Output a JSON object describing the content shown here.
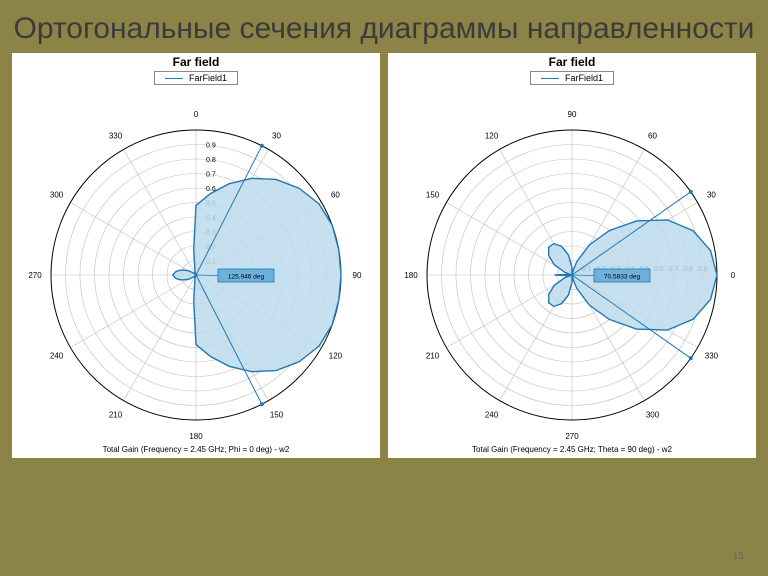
{
  "slide": {
    "background_color": "#8c8446",
    "title": "Ортогональные сечения диаграммы направленности",
    "title_color": "#3b3b3b",
    "title_fontsize": 30
  },
  "charts": [
    {
      "title": "Far field",
      "title_fontsize": 12,
      "legend_label": "FarField1",
      "legend_color": "#1f77b4",
      "caption": "Total Gain (Frequency = 2.45 GHz; Phi = 0 deg) - w2",
      "caption_fontsize": 8,
      "polar": {
        "type": "polar",
        "r_max": 1.0,
        "radial_ticks": [
          0.1,
          0.2,
          0.3,
          0.4,
          0.5,
          0.6,
          0.7,
          0.8,
          0.9
        ],
        "angle_ticks": [
          0,
          30,
          60,
          90,
          120,
          150,
          180,
          210,
          240,
          270,
          300,
          330
        ],
        "angle_label_fontsize": 8,
        "radial_label_fontsize": 7,
        "grid_color": "#bfbfbf",
        "outer_circle_color": "#000000",
        "background_color": "#ffffff",
        "zero_at": "top",
        "direction": "cw",
        "pattern_fill": "#bcdbec",
        "pattern_stroke": "#1f77b4",
        "pattern_stroke_width": 1.4,
        "annotation": {
          "text": "125.946 deg",
          "bg": "#6fb1dd",
          "border": "#1f77b4",
          "fontsize": 6.5
        },
        "leader_angles": [
          27,
          153
        ],
        "data": [
          {
            "ang": 0,
            "r": 0.48
          },
          {
            "ang": 10,
            "r": 0.57
          },
          {
            "ang": 20,
            "r": 0.67
          },
          {
            "ang": 30,
            "r": 0.77
          },
          {
            "ang": 40,
            "r": 0.86
          },
          {
            "ang": 50,
            "r": 0.93
          },
          {
            "ang": 60,
            "r": 0.98
          },
          {
            "ang": 70,
            "r": 1.0
          },
          {
            "ang": 80,
            "r": 1.0
          },
          {
            "ang": 90,
            "r": 1.0
          },
          {
            "ang": 100,
            "r": 1.0
          },
          {
            "ang": 110,
            "r": 1.0
          },
          {
            "ang": 120,
            "r": 0.98
          },
          {
            "ang": 130,
            "r": 0.93
          },
          {
            "ang": 140,
            "r": 0.86
          },
          {
            "ang": 150,
            "r": 0.77
          },
          {
            "ang": 160,
            "r": 0.67
          },
          {
            "ang": 170,
            "r": 0.57
          },
          {
            "ang": 180,
            "r": 0.48
          },
          {
            "ang": 185,
            "r": 0.18
          },
          {
            "ang": 190,
            "r": 0.05
          },
          {
            "ang": 200,
            "r": 0.02
          },
          {
            "ang": 210,
            "r": 0.0
          },
          {
            "ang": 220,
            "r": 0.0
          },
          {
            "ang": 230,
            "r": 0.02
          },
          {
            "ang": 240,
            "r": 0.06
          },
          {
            "ang": 250,
            "r": 0.1
          },
          {
            "ang": 255,
            "r": 0.12
          },
          {
            "ang": 260,
            "r": 0.14
          },
          {
            "ang": 265,
            "r": 0.15
          },
          {
            "ang": 270,
            "r": 0.16
          },
          {
            "ang": 275,
            "r": 0.15
          },
          {
            "ang": 280,
            "r": 0.14
          },
          {
            "ang": 285,
            "r": 0.12
          },
          {
            "ang": 290,
            "r": 0.1
          },
          {
            "ang": 300,
            "r": 0.06
          },
          {
            "ang": 310,
            "r": 0.02
          },
          {
            "ang": 320,
            "r": 0.0
          },
          {
            "ang": 330,
            "r": 0.0
          },
          {
            "ang": 340,
            "r": 0.02
          },
          {
            "ang": 350,
            "r": 0.05
          },
          {
            "ang": 355,
            "r": 0.18
          }
        ]
      }
    },
    {
      "title": "Far field",
      "title_fontsize": 12,
      "legend_label": "FarField1",
      "legend_color": "#1f77b4",
      "caption": "Total Gain (Frequency = 2.45 GHz; Theta = 90 deg) - w2",
      "caption_fontsize": 8,
      "polar": {
        "type": "polar",
        "r_max": 1.0,
        "radial_ticks": [
          0.1,
          0.2,
          0.3,
          0.4,
          0.5,
          0.6,
          0.7,
          0.8,
          0.9
        ],
        "angle_ticks": [
          0,
          30,
          60,
          90,
          120,
          150,
          180,
          210,
          240,
          270,
          300,
          330
        ],
        "angle_label_fontsize": 8,
        "radial_label_fontsize": 7,
        "grid_color": "#bfbfbf",
        "outer_circle_color": "#000000",
        "background_color": "#ffffff",
        "zero_at": "right",
        "direction": "ccw",
        "pattern_fill": "#bcdbec",
        "pattern_stroke": "#1f77b4",
        "pattern_stroke_width": 1.4,
        "annotation": {
          "text": "70.5833 deg",
          "bg": "#6fb1dd",
          "border": "#1f77b4",
          "fontsize": 6.5
        },
        "leader_angles": [
          35,
          -35
        ],
        "data": [
          {
            "ang": 0,
            "r": 1.0
          },
          {
            "ang": 10,
            "r": 0.97
          },
          {
            "ang": 20,
            "r": 0.89
          },
          {
            "ang": 30,
            "r": 0.76
          },
          {
            "ang": 40,
            "r": 0.58
          },
          {
            "ang": 50,
            "r": 0.4
          },
          {
            "ang": 60,
            "r": 0.24
          },
          {
            "ang": 70,
            "r": 0.1
          },
          {
            "ang": 75,
            "r": 0.04
          },
          {
            "ang": 80,
            "r": 0.0
          },
          {
            "ang": 90,
            "r": 0.05
          },
          {
            "ang": 100,
            "r": 0.14
          },
          {
            "ang": 110,
            "r": 0.21
          },
          {
            "ang": 120,
            "r": 0.25
          },
          {
            "ang": 130,
            "r": 0.25
          },
          {
            "ang": 140,
            "r": 0.21
          },
          {
            "ang": 150,
            "r": 0.14
          },
          {
            "ang": 160,
            "r": 0.05
          },
          {
            "ang": 170,
            "r": 0.0
          },
          {
            "ang": 175,
            "r": 0.04
          },
          {
            "ang": 180,
            "r": 0.12
          },
          {
            "ang": 185,
            "r": 0.04
          },
          {
            "ang": 190,
            "r": 0.0
          },
          {
            "ang": 200,
            "r": 0.05
          },
          {
            "ang": 210,
            "r": 0.14
          },
          {
            "ang": 220,
            "r": 0.21
          },
          {
            "ang": 230,
            "r": 0.25
          },
          {
            "ang": 240,
            "r": 0.25
          },
          {
            "ang": 250,
            "r": 0.21
          },
          {
            "ang": 260,
            "r": 0.14
          },
          {
            "ang": 270,
            "r": 0.05
          },
          {
            "ang": 280,
            "r": 0.0
          },
          {
            "ang": 285,
            "r": 0.04
          },
          {
            "ang": 290,
            "r": 0.1
          },
          {
            "ang": 300,
            "r": 0.24
          },
          {
            "ang": 310,
            "r": 0.4
          },
          {
            "ang": 320,
            "r": 0.58
          },
          {
            "ang": 330,
            "r": 0.76
          },
          {
            "ang": 340,
            "r": 0.89
          },
          {
            "ang": 350,
            "r": 0.97
          }
        ]
      }
    }
  ],
  "page_number": "15"
}
